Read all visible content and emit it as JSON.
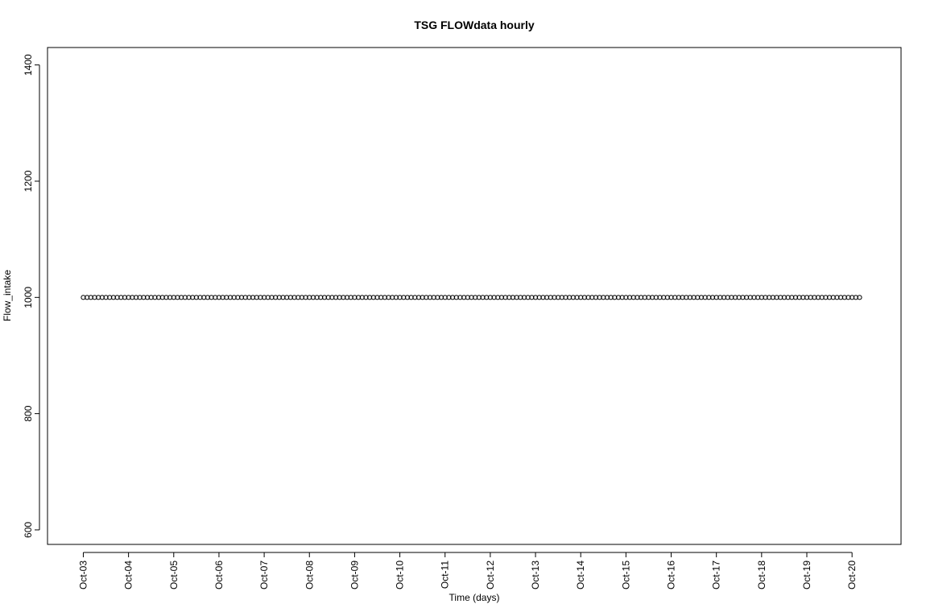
{
  "chart_data": {
    "type": "scatter",
    "title": "TSG FLOWdata hourly",
    "xlabel": "Time (days)",
    "ylabel": "Flow_intake",
    "x_tick_labels": [
      "Oct-03",
      "Oct-04",
      "Oct-05",
      "Oct-06",
      "Oct-07",
      "Oct-08",
      "Oct-09",
      "Oct-10",
      "Oct-11",
      "Oct-12",
      "Oct-13",
      "Oct-14",
      "Oct-15",
      "Oct-16",
      "Oct-17",
      "Oct-18",
      "Oct-19",
      "Oct-20"
    ],
    "y_ticks": [
      600,
      800,
      1000,
      1200,
      1400
    ],
    "ylim": [
      575,
      1430
    ],
    "xlim": [
      "Oct-02 05:00",
      "Oct-21 02:00"
    ],
    "grid": false,
    "series": [
      {
        "x_start": "Oct-03 00:00",
        "x_end": "Oct-20 04:00",
        "interval_hours": 2,
        "y_constant": 1000,
        "marker": "open-circle",
        "color": "#000000"
      }
    ]
  }
}
